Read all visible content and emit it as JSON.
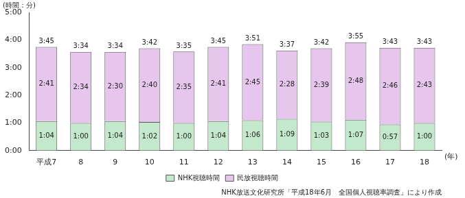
{
  "chart_data": {
    "type": "bar",
    "stacked": true,
    "title": "(時間：分)",
    "xlabel": "(年)",
    "note": "NHK放送文化研究所「平成18年6月　全国個人視聴率調査」により作成",
    "categories": [
      "平成7",
      "8",
      "9",
      "10",
      "11",
      "12",
      "13",
      "14",
      "15",
      "16",
      "17",
      "18"
    ],
    "series": [
      {
        "name": "NHK視聴時間",
        "color": "#c4e8cc",
        "values": [
          64,
          60,
          64,
          62,
          60,
          64,
          66,
          69,
          63,
          67,
          57,
          60
        ],
        "value_labels": [
          "1:04",
          "1:00",
          "1:04",
          "1:02",
          "1:00",
          "1:04",
          "1:06",
          "1:09",
          "1:03",
          "1:07",
          "0:57",
          "1:00"
        ]
      },
      {
        "name": "民放視聴時間",
        "color": "#e6c6ec",
        "values": [
          161,
          154,
          150,
          160,
          155,
          161,
          165,
          148,
          159,
          168,
          166,
          163
        ],
        "value_labels": [
          "2:41",
          "2:34",
          "2:30",
          "2:40",
          "2:35",
          "2:41",
          "2:45",
          "2:28",
          "2:39",
          "2:48",
          "2:46",
          "2:43"
        ]
      }
    ],
    "totals": [
      225,
      214,
      214,
      222,
      215,
      225,
      231,
      217,
      222,
      235,
      223,
      223
    ],
    "total_labels": [
      "3:45",
      "3:34",
      "3:34",
      "3:42",
      "3:35",
      "3:45",
      "3:51",
      "3:37",
      "3:42",
      "3:55",
      "3:43",
      "3:43"
    ],
    "ylim": [
      0,
      300
    ],
    "yticks": [
      {
        "value": 0,
        "label": "0:00"
      },
      {
        "value": 60,
        "label": "1:00"
      },
      {
        "value": 120,
        "label": "2:00"
      },
      {
        "value": 180,
        "label": "3:00"
      },
      {
        "value": 240,
        "label": "4:00"
      },
      {
        "value": 300,
        "label": "5:00"
      }
    ],
    "grid": false,
    "data_labels": true,
    "legend": "bottom"
  }
}
